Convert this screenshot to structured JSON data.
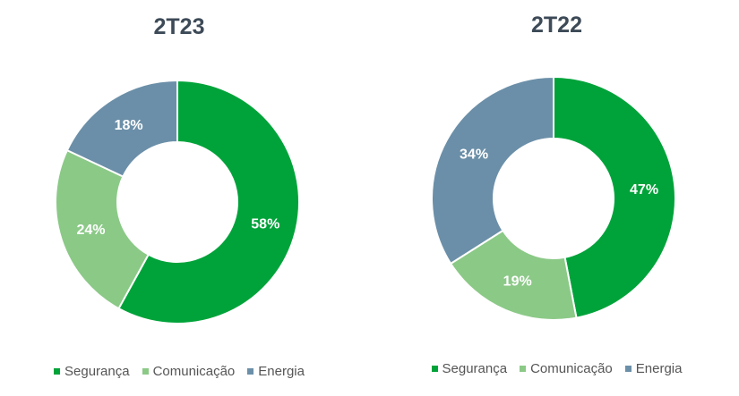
{
  "chart_data": [
    {
      "type": "pie",
      "title": "2T23",
      "categories": [
        "Segurança",
        "Comunicação",
        "Energia"
      ],
      "values": [
        58,
        24,
        18
      ],
      "data_labels": [
        "58%",
        "24%",
        "18%"
      ],
      "colors": [
        "#00a33a",
        "#8bc987",
        "#6b8fa8"
      ],
      "legend": "bottom"
    },
    {
      "type": "pie",
      "title": "2T22",
      "categories": [
        "Segurança",
        "Comunicação",
        "Energia"
      ],
      "values": [
        47,
        19,
        34
      ],
      "data_labels": [
        "47%",
        "19%",
        "34%"
      ],
      "colors": [
        "#00a33a",
        "#8bc987",
        "#6b8fa8"
      ],
      "legend": "bottom"
    }
  ]
}
